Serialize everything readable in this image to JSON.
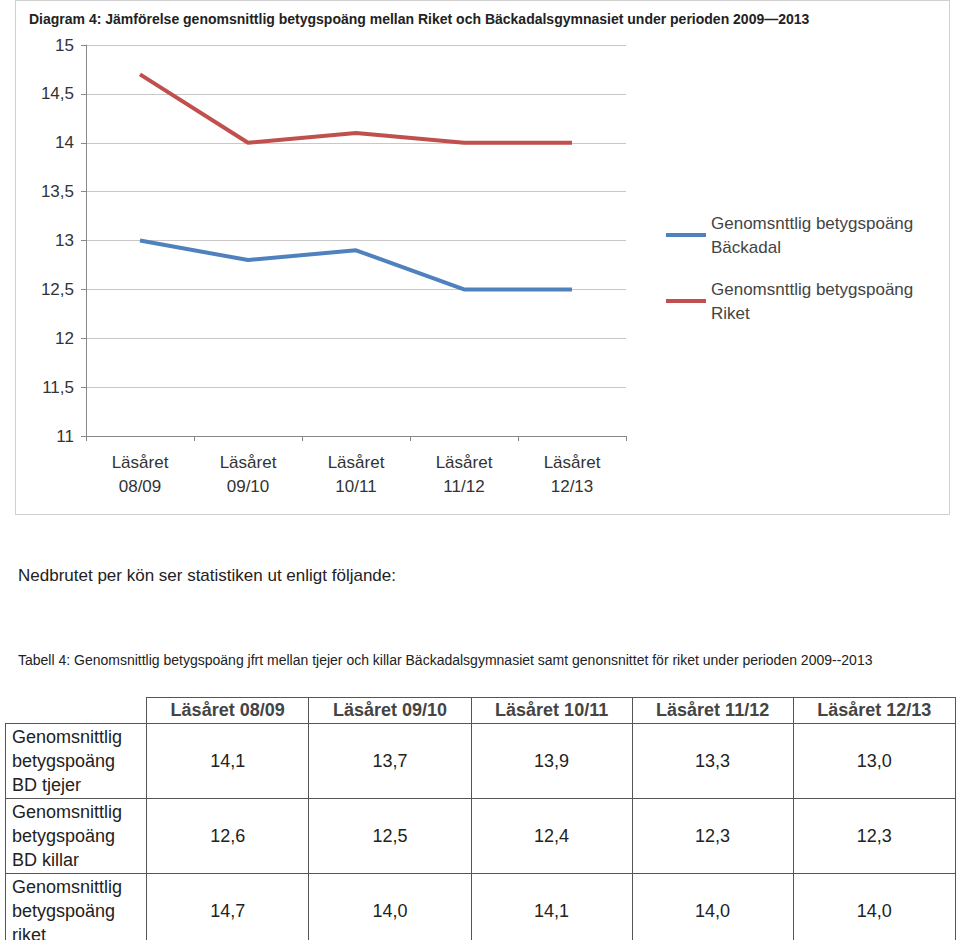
{
  "chart_data": {
    "type": "line",
    "title": "Diagram 4: Jämförelse genomsnittlig betygspoäng mellan Riket och Bäckadalsgymnasiet under perioden 2009—2013",
    "categories": [
      "Läsåret 08/09",
      "Läsåret 09/10",
      "Läsåret 10/11",
      "Läsåret 11/12",
      "Läsåret 12/13"
    ],
    "series": [
      {
        "name": "Genomsnttlig betygspoäng Bäckadal",
        "color": "#4f81bd",
        "values": [
          13.0,
          12.8,
          12.9,
          12.5,
          12.5
        ]
      },
      {
        "name": "Genomsnttlig betygspoäng Riket",
        "color": "#c0504d",
        "values": [
          14.7,
          14.0,
          14.1,
          14.0,
          14.0
        ]
      }
    ],
    "ylim": [
      11,
      15
    ],
    "yticks": [
      11,
      {
        "value": 11.5,
        "label": "11,5"
      },
      12,
      {
        "value": 12.5,
        "label": "12,5"
      },
      13,
      {
        "value": 13.5,
        "label": "13,5"
      },
      14,
      {
        "value": 14.5,
        "label": "14,5"
      },
      15
    ],
    "grid": true,
    "legend": "right"
  },
  "paragraph": "Nedbrutet per kön ser statistiken ut enligt följande:",
  "table": {
    "caption": "Tabell 4: Genomsnittlig betygspoäng  jfrt mellan tjejer och killar Bäckadalsgymnasiet samt genonsnittet för riket under perioden 2009--2013",
    "header": [
      "Läsåret 08/09",
      "Läsåret 09/10",
      "Läsåret 10/11",
      "Läsåret 11/12",
      "Läsåret 12/13"
    ],
    "rows": [
      [
        "Genomsnittlig betygspoäng BD tjejer",
        "14,1",
        "13,7",
        "13,9",
        "13,3",
        "13,0"
      ],
      [
        "Genomsnittlig betygspoäng BD killar",
        "12,6",
        "12,5",
        "12,4",
        "12,3",
        "12,3"
      ],
      [
        "Genomsnittlig betygspoäng riket",
        "14,7",
        "14,0",
        "14,1",
        "14,0",
        "14,0"
      ]
    ]
  }
}
